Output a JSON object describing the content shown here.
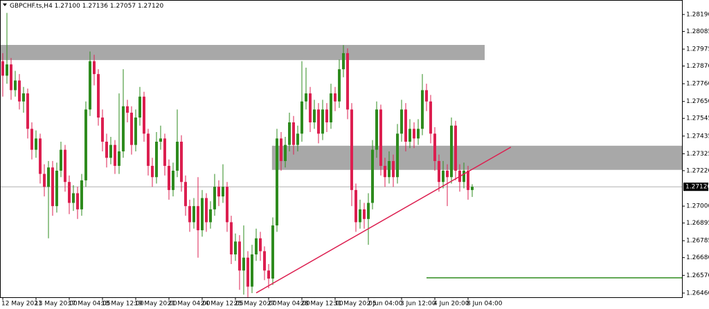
{
  "header": {
    "symbol": "GBPCHF.ts,H4",
    "ohlc_labels": [
      "1.27100",
      "1.27136",
      "1.27057",
      "1.27120"
    ]
  },
  "chart_data": {
    "type": "candlestick",
    "categories": [
      "12 May 2021",
      null,
      null,
      null,
      null,
      null,
      null,
      null,
      "13 May 20:00",
      null,
      null,
      null,
      null,
      null,
      null,
      null,
      "17 May 04:05",
      null,
      null,
      null,
      null,
      null,
      null,
      null,
      "18 May 12:00",
      null,
      null,
      null,
      null,
      null,
      null,
      null,
      "19 May 20:00",
      null,
      null,
      null,
      null,
      null,
      null,
      null,
      "21 May 04:00",
      null,
      null,
      null,
      null,
      null,
      null,
      null,
      "24 May 12:05",
      null,
      null,
      null,
      null,
      null,
      null,
      null,
      "25 May 20:00",
      null,
      null,
      null,
      null,
      null,
      null,
      null,
      "27 May 04:00",
      null,
      null,
      null,
      null,
      null,
      null,
      null,
      "28 May 12:00",
      null,
      null,
      null,
      null,
      null,
      null,
      null,
      "31 May 20:05",
      null,
      null,
      null,
      null,
      null,
      null,
      null,
      "2 Jun 04:00",
      null,
      null,
      null,
      null,
      null,
      null,
      null,
      "3 Jun 12:00",
      null,
      null,
      null,
      null,
      null,
      null,
      null,
      "4 Jun 20:00",
      null,
      null,
      null,
      null,
      null,
      null,
      null,
      "8 Jun 04:00",
      null
    ],
    "open": [
      1.279,
      1.2781,
      1.2788,
      1.2772,
      1.2778,
      1.2765,
      1.277,
      1.2748,
      1.2735,
      1.2742,
      1.272,
      1.2712,
      1.2724,
      1.27,
      1.2722,
      1.2735,
      1.2715,
      1.2702,
      1.2708,
      1.2698,
      1.2716,
      1.276,
      1.279,
      1.2782,
      1.2755,
      1.274,
      1.273,
      1.2738,
      1.2725,
      1.2734,
      1.2762,
      1.2758,
      1.2738,
      1.2755,
      1.2768,
      1.2745,
      1.2725,
      1.2718,
      1.274,
      1.2742,
      1.2725,
      1.271,
      1.2722,
      1.274,
      1.2715,
      1.27,
      1.269,
      1.27,
      1.2685,
      1.2705,
      1.269,
      1.2698,
      1.2712,
      1.2706,
      1.2712,
      1.269,
      1.267,
      1.2678,
      1.266,
      1.2668,
      1.265,
      1.267,
      1.268,
      1.2672,
      1.266,
      1.2655,
      1.2688,
      1.2742,
      1.2728,
      1.2738,
      1.2752,
      1.2738,
      1.2745,
      1.2765,
      1.277,
      1.2752,
      1.276,
      1.2745,
      1.276,
      1.2752,
      1.277,
      1.2765,
      1.2785,
      1.2795,
      1.276,
      1.271,
      1.269,
      1.2698,
      1.2692,
      1.2702,
      1.2735,
      1.276,
      1.2725,
      1.2718,
      1.2728,
      1.2718,
      1.2745,
      1.276,
      1.274,
      1.2748,
      1.2742,
      1.2748,
      1.2772,
      1.2765,
      1.2745,
      1.2728,
      1.2715,
      1.2722,
      1.2718,
      1.275,
      1.2722,
      1.2715,
      1.2722,
      1.271
    ],
    "high": [
      1.2795,
      1.282,
      1.2792,
      1.2784,
      1.2782,
      1.2774,
      1.2773,
      1.2752,
      1.2747,
      1.2745,
      1.2726,
      1.2728,
      1.2728,
      1.2727,
      1.274,
      1.2738,
      1.2719,
      1.2713,
      1.2712,
      1.272,
      1.2765,
      1.2796,
      1.2794,
      1.2785,
      1.276,
      1.2745,
      1.2743,
      1.2741,
      1.277,
      1.2785,
      1.2766,
      1.2762,
      1.276,
      1.2774,
      1.2771,
      1.2748,
      1.273,
      1.2746,
      1.275,
      1.2745,
      1.2729,
      1.2727,
      1.276,
      1.2744,
      1.2719,
      1.2704,
      1.2705,
      1.2718,
      1.271,
      1.2708,
      1.2703,
      1.272,
      1.2716,
      1.2726,
      1.2715,
      1.2694,
      1.2683,
      1.2682,
      1.2688,
      1.2672,
      1.2676,
      1.2686,
      1.2684,
      1.2675,
      1.2664,
      1.2693,
      1.2748,
      1.2746,
      1.2743,
      1.2758,
      1.2756,
      1.275,
      1.279,
      1.2786,
      1.2774,
      1.2766,
      1.2764,
      1.2766,
      1.2764,
      1.2776,
      1.2774,
      1.2791,
      1.28,
      1.2798,
      1.2764,
      1.2714,
      1.2704,
      1.2702,
      1.2708,
      1.2741,
      1.2765,
      1.2763,
      1.273,
      1.2734,
      1.2732,
      1.2751,
      1.2766,
      1.2764,
      1.2754,
      1.2752,
      1.2754,
      1.2782,
      1.2776,
      1.2769,
      1.2749,
      1.2732,
      1.2728,
      1.2726,
      1.2755,
      1.2753,
      1.2726,
      1.2727,
      1.2725,
      1.27136
    ],
    "low": [
      1.2768,
      1.2776,
      1.2766,
      1.2768,
      1.276,
      1.2758,
      1.2742,
      1.2729,
      1.273,
      1.2714,
      1.2706,
      1.268,
      1.2694,
      1.2696,
      1.2718,
      1.2709,
      1.2695,
      1.2697,
      1.2692,
      1.2694,
      1.2712,
      1.2756,
      1.2775,
      1.275,
      1.2734,
      1.2724,
      1.2726,
      1.272,
      1.272,
      1.273,
      1.2752,
      1.2732,
      1.2734,
      1.275,
      1.274,
      1.2719,
      1.2712,
      1.2714,
      1.2735,
      1.2719,
      1.2704,
      1.2706,
      1.2718,
      1.2709,
      1.2694,
      1.2684,
      1.2686,
      1.2668,
      1.2681,
      1.2684,
      1.2686,
      1.2694,
      1.27,
      1.2702,
      1.2684,
      1.2664,
      1.2666,
      1.2648,
      1.2645,
      1.264,
      1.2646,
      1.2666,
      1.2666,
      1.2654,
      1.2649,
      1.2651,
      1.2684,
      1.2722,
      1.2724,
      1.2734,
      1.2732,
      1.2734,
      1.274,
      1.276,
      1.2746,
      1.2748,
      1.2739,
      1.2741,
      1.2746,
      1.2748,
      1.2759,
      1.2761,
      1.278,
      1.2754,
      1.27,
      1.2684,
      1.2686,
      1.2686,
      1.2676,
      1.2698,
      1.273,
      1.2719,
      1.2712,
      1.2714,
      1.2712,
      1.2714,
      1.274,
      1.2734,
      1.2736,
      1.2736,
      1.2738,
      1.2744,
      1.2759,
      1.2739,
      1.2722,
      1.2709,
      1.2711,
      1.27,
      1.2714,
      1.2716,
      1.2709,
      1.2711,
      1.2704,
      1.27057
    ],
    "close": [
      1.2781,
      1.2788,
      1.2772,
      1.2778,
      1.2765,
      1.277,
      1.2748,
      1.2735,
      1.2742,
      1.272,
      1.2712,
      1.2724,
      1.27,
      1.2722,
      1.2735,
      1.2715,
      1.2702,
      1.2708,
      1.2698,
      1.2716,
      1.276,
      1.279,
      1.2782,
      1.2755,
      1.274,
      1.273,
      1.2738,
      1.2725,
      1.2734,
      1.2762,
      1.2758,
      1.2738,
      1.2755,
      1.2768,
      1.2745,
      1.2725,
      1.2718,
      1.274,
      1.2742,
      1.2725,
      1.271,
      1.2722,
      1.274,
      1.2715,
      1.27,
      1.269,
      1.27,
      1.2685,
      1.2705,
      1.269,
      1.2698,
      1.2712,
      1.2706,
      1.2712,
      1.269,
      1.267,
      1.2678,
      1.266,
      1.2668,
      1.265,
      1.267,
      1.268,
      1.2672,
      1.266,
      1.2655,
      1.2688,
      1.2742,
      1.2728,
      1.2738,
      1.2752,
      1.2738,
      1.2745,
      1.2765,
      1.277,
      1.2752,
      1.276,
      1.2745,
      1.276,
      1.2752,
      1.277,
      1.2765,
      1.2785,
      1.2795,
      1.276,
      1.271,
      1.269,
      1.2698,
      1.2692,
      1.2702,
      1.2735,
      1.276,
      1.2725,
      1.2718,
      1.2728,
      1.2718,
      1.2745,
      1.276,
      1.274,
      1.2748,
      1.2742,
      1.2748,
      1.2772,
      1.2765,
      1.2745,
      1.2728,
      1.2715,
      1.2722,
      1.2718,
      1.275,
      1.2722,
      1.2715,
      1.2722,
      1.271,
      1.2712
    ],
    "up_color": "#2e8b1e",
    "down_color": "#dc1f50",
    "ylim": [
      1.26434,
      1.2828
    ],
    "yticks": [
      {
        "value": 1.2819,
        "label": "1.28190"
      },
      {
        "value": 1.28085,
        "label": "1.28085"
      },
      {
        "value": 1.27975,
        "label": "1.27975"
      },
      {
        "value": 1.2787,
        "label": "1.27870"
      },
      {
        "value": 1.2776,
        "label": "1.27760"
      },
      {
        "value": 1.2765,
        "label": "1.27650"
      },
      {
        "value": 1.27545,
        "label": "1.27545"
      },
      {
        "value": 1.27435,
        "label": "1.27435"
      },
      {
        "value": 1.27325,
        "label": "1.27325"
      },
      {
        "value": 1.2722,
        "label": "1.27220"
      },
      {
        "value": 1.27,
        "label": "1.27000"
      },
      {
        "value": 1.26895,
        "label": "1.26895"
      },
      {
        "value": 1.26785,
        "label": "1.26785"
      },
      {
        "value": 1.2668,
        "label": "1.26680"
      },
      {
        "value": 1.2657,
        "label": "1.26570"
      },
      {
        "value": 1.2646,
        "label": "1.26460"
      }
    ],
    "current_price": {
      "value": 1.2712,
      "label": "1.27120",
      "color": "#b0b0b0"
    },
    "zones": [
      {
        "low": 1.27907,
        "high": 1.28001,
        "start": -1,
        "end": 116,
        "color": "#a8a8a8"
      },
      {
        "low": 1.27225,
        "high": 1.27375,
        "start": 64.8,
        "end": 164,
        "color": "#a8a8a8"
      }
    ],
    "trend_line": {
      "start": 61,
      "start_value": 1.26461,
      "end": 122.3,
      "end_value": 1.27366,
      "color": "#dc1f50"
    },
    "level_line": {
      "start": 102,
      "end": 164,
      "value": 1.26555,
      "color": "#2e8b1e"
    }
  }
}
